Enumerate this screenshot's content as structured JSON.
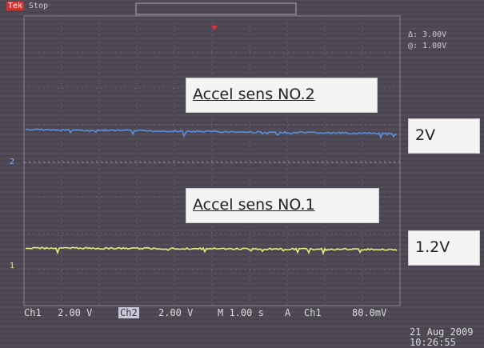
{
  "header": {
    "brand": "Tek",
    "state": "Stop",
    "cursor_delta": "Δ: 3.00V",
    "cursor_at": "@: 1.00V"
  },
  "annotations": [
    {
      "title": "Accel sens NO.2",
      "level": "2V"
    },
    {
      "title": "Accel sens NO.1",
      "level": "1.2V"
    }
  ],
  "channel_markers": [
    "2",
    "1"
  ],
  "status_bar": {
    "ch1": "Ch1",
    "ch1_scale": "2.00 V",
    "ch2": "Ch2",
    "ch2_scale": "2.00 V",
    "timebase": "M 1.00 s",
    "trigger_mode": "A",
    "trigger_source": "Ch1",
    "trigger_level": "80.0mV"
  },
  "timestamp": {
    "date": "21 Aug 2009",
    "time": "10:26:55"
  }
}
